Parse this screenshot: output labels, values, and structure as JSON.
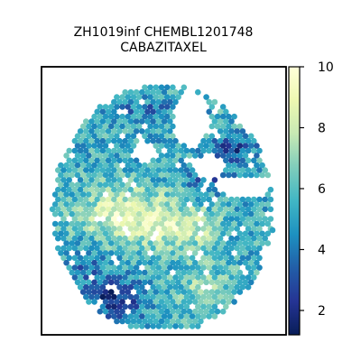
{
  "chart_data": {
    "type": "heatmap",
    "subtype": "spatial-hexbin",
    "title_line1": "ZH1019inf CHEMBL1201748",
    "title_line2": "CABAZITAXEL",
    "xlabel": "",
    "ylabel": "",
    "axis_ticks": false,
    "grid": false,
    "colorbar": {
      "colormap": "YlGnBu_r",
      "range": [
        1.2,
        10
      ],
      "ticks": [
        2,
        4,
        6,
        8,
        10
      ],
      "tick_labels": [
        "2",
        "4",
        "6",
        "8",
        "10"
      ],
      "position": "right"
    },
    "value_summary": {
      "min": 1.2,
      "max": 10,
      "high_region": "center-left band",
      "low_region": "bottom-left edge and upper-right patches"
    },
    "colors": {
      "low": "#081d58",
      "mid_low": "#225ea8",
      "mid": "#41b6c4",
      "mid_high": "#c7e9b4",
      "high": "#ffffd9"
    }
  }
}
